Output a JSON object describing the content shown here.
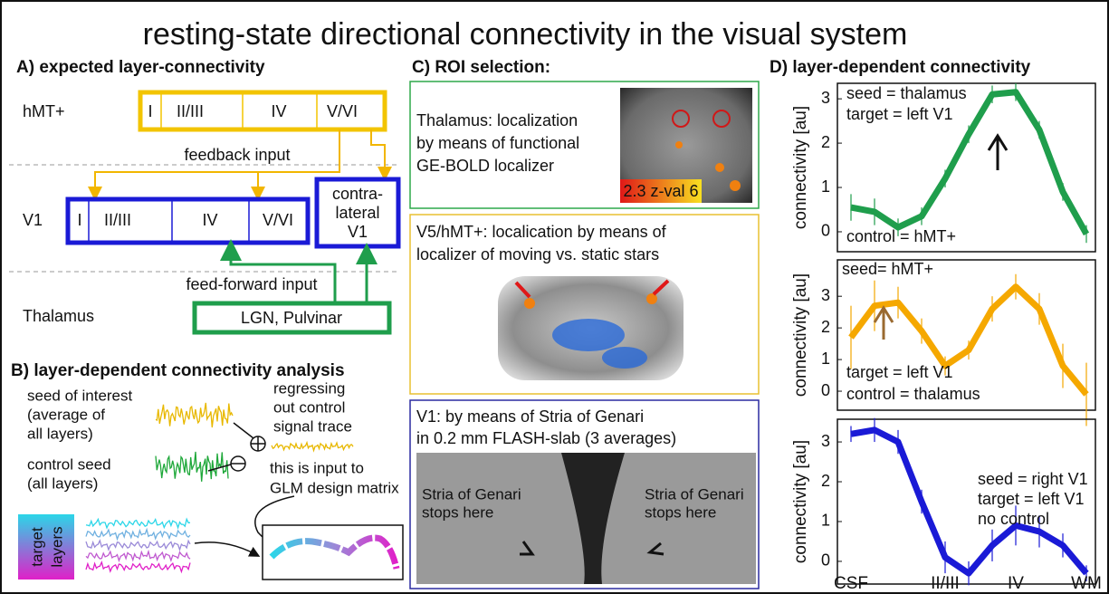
{
  "title": "resting-state directional connectivity in the visual system",
  "panel_a": {
    "label": "A) expected layer-connectivity",
    "rows": [
      "hMT+",
      "V1",
      "Thalamus"
    ],
    "hmt_layers": [
      "I",
      "II/III",
      "IV",
      "V/VI"
    ],
    "v1_layers": [
      "I",
      "II/III",
      "IV",
      "V/VI"
    ],
    "contra": [
      "contra-",
      "lateral",
      "V1"
    ],
    "thalamus_box": "LGN, Pulvinar",
    "feedback": "feedback input",
    "feedforward": "feed-forward input"
  },
  "panel_b": {
    "label": "B) layer-dependent connectivity analysis",
    "seed": [
      "seed of interest",
      "(average of",
      "all layers)"
    ],
    "control": [
      "control seed",
      "(all layers)"
    ],
    "regress": [
      "regressing",
      "out control",
      "signal trace"
    ],
    "glm": [
      "this is input to",
      "GLM design matrix"
    ],
    "target": [
      "target",
      "layers"
    ]
  },
  "panel_c": {
    "label": "C) ROI selection:",
    "thalamus": [
      "Thalamus: localization",
      "by means of functional",
      "GE-BOLD localizer"
    ],
    "colorbar": "2.3 z-val 6",
    "hmt": [
      "V5/hMT+: localication by means of",
      "localizer of moving vs. static stars"
    ],
    "v1": [
      "V1: by means of Stria of Genari",
      "in 0.2 mm FLASH-slab (3 averages)"
    ],
    "stria": [
      "Stria of Genari",
      "stops here"
    ]
  },
  "panel_d_label": "D) layer-dependent connectivity",
  "chart_data": [
    {
      "type": "line",
      "ylabel": "connectivity [au]",
      "annotations": [
        "seed = thalamus",
        "target = left V1",
        "control = hMT+"
      ],
      "color": "#1f9e4c",
      "values": [
        0.55,
        0.45,
        0.1,
        0.35,
        1.2,
        2.2,
        3.1,
        3.15,
        2.3,
        0.9,
        -0.05
      ],
      "errors": [
        0.3,
        0.3,
        0.2,
        0.2,
        0.2,
        0.2,
        0.2,
        0.2,
        0.2,
        0.2,
        0.2
      ],
      "ylim": [
        -0.45,
        3.35
      ],
      "yticks": [
        0,
        1,
        2,
        3
      ]
    },
    {
      "type": "line",
      "ylabel": "connectivity [au]",
      "annotations": [
        "seed= hMT+",
        "target = left V1",
        "control = thalamus"
      ],
      "color": "#f5a800",
      "values": [
        1.7,
        2.7,
        2.8,
        1.9,
        0.8,
        1.3,
        2.6,
        3.3,
        2.6,
        0.8,
        -0.1
      ],
      "errors": [
        1.0,
        0.8,
        0.5,
        0.4,
        0.3,
        0.3,
        0.4,
        0.4,
        0.5,
        0.7,
        1.0
      ],
      "ylim": [
        -0.6,
        4.15
      ],
      "yticks": [
        0,
        1,
        2,
        3
      ]
    },
    {
      "type": "line",
      "ylabel": "connectivity [au]",
      "annotations": [
        "seed = right V1",
        "target = left V1",
        "no control"
      ],
      "color": "#1a1ad6",
      "values": [
        3.2,
        3.3,
        3.0,
        1.5,
        0.1,
        -0.3,
        0.4,
        0.9,
        0.75,
        0.4,
        -0.3
      ],
      "errors": [
        0.2,
        0.3,
        0.3,
        0.3,
        0.4,
        0.3,
        0.4,
        0.5,
        0.4,
        0.3,
        0.2
      ],
      "categories": [
        "CSF",
        null,
        null,
        null,
        "II/III",
        null,
        null,
        "IV",
        null,
        null,
        "WM"
      ],
      "ylim": [
        -0.57,
        3.57
      ],
      "yticks": [
        0,
        1,
        2,
        3
      ]
    }
  ]
}
